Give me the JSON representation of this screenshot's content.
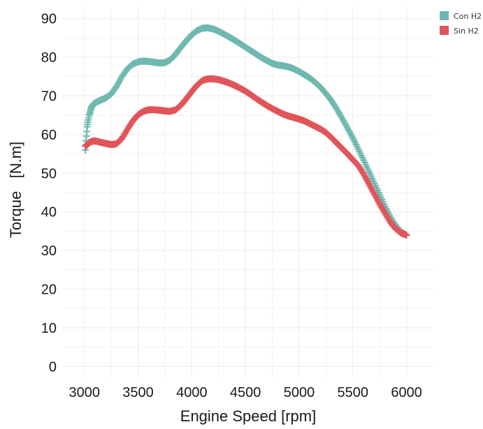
{
  "chart_data": {
    "type": "scatter",
    "title": "",
    "xlabel": "Engine Speed [rpm]",
    "ylabel": "Torque   [N.m]",
    "xlim": [
      2800,
      6250
    ],
    "ylim": [
      -3,
      93
    ],
    "x_ticks": [
      3000,
      3500,
      4000,
      4500,
      5000,
      5500,
      6000
    ],
    "y_ticks": [
      0,
      10,
      20,
      30,
      40,
      50,
      60,
      70,
      80,
      90
    ],
    "grid": true,
    "legend_position": "top-right",
    "marker": "plus",
    "series": [
      {
        "name": "Con H2",
        "color": "#6fb8b0",
        "points": [
          [
            3010,
            56
          ],
          [
            3025,
            62
          ],
          [
            3045,
            65
          ],
          [
            3065,
            67
          ],
          [
            3090,
            68
          ],
          [
            3120,
            68.5
          ],
          [
            3160,
            69
          ],
          [
            3200,
            69.5
          ],
          [
            3250,
            70.5
          ],
          [
            3300,
            72.5
          ],
          [
            3350,
            75
          ],
          [
            3400,
            77
          ],
          [
            3450,
            78.2
          ],
          [
            3500,
            78.8
          ],
          [
            3550,
            79
          ],
          [
            3600,
            78.9
          ],
          [
            3650,
            78.7
          ],
          [
            3700,
            78.5
          ],
          [
            3750,
            78.6
          ],
          [
            3800,
            79.3
          ],
          [
            3850,
            80.8
          ],
          [
            3900,
            82.6
          ],
          [
            3950,
            84.3
          ],
          [
            4000,
            85.8
          ],
          [
            4050,
            86.9
          ],
          [
            4100,
            87.5
          ],
          [
            4150,
            87.6
          ],
          [
            4200,
            87.3
          ],
          [
            4250,
            86.7
          ],
          [
            4300,
            86
          ],
          [
            4350,
            85.2
          ],
          [
            4400,
            84.4
          ],
          [
            4450,
            83.5
          ],
          [
            4500,
            82.6
          ],
          [
            4550,
            81.7
          ],
          [
            4600,
            80.8
          ],
          [
            4650,
            79.9
          ],
          [
            4700,
            79.1
          ],
          [
            4750,
            78.4
          ],
          [
            4800,
            78
          ],
          [
            4850,
            77.8
          ],
          [
            4900,
            77.5
          ],
          [
            4950,
            77
          ],
          [
            5000,
            76.3
          ],
          [
            5050,
            75.5
          ],
          [
            5100,
            74.6
          ],
          [
            5150,
            73.5
          ],
          [
            5200,
            72.2
          ],
          [
            5250,
            70.6
          ],
          [
            5300,
            68.8
          ],
          [
            5350,
            66.6
          ],
          [
            5400,
            64.2
          ],
          [
            5450,
            61.7
          ],
          [
            5500,
            59.1
          ],
          [
            5550,
            56.3
          ],
          [
            5600,
            53.4
          ],
          [
            5650,
            50.4
          ],
          [
            5700,
            47.4
          ],
          [
            5750,
            44.4
          ],
          [
            5800,
            41.4
          ],
          [
            5850,
            38.6
          ],
          [
            5900,
            36.4
          ],
          [
            5950,
            34.8
          ],
          [
            6000,
            34
          ]
        ]
      },
      {
        "name": "Sin H2",
        "color": "#e0545a",
        "points": [
          [
            3010,
            57
          ],
          [
            3030,
            57.5
          ],
          [
            3050,
            58
          ],
          [
            3080,
            58.3
          ],
          [
            3110,
            58.3
          ],
          [
            3150,
            58
          ],
          [
            3200,
            57.7
          ],
          [
            3250,
            57.4
          ],
          [
            3300,
            57.6
          ],
          [
            3350,
            59
          ],
          [
            3400,
            61.3
          ],
          [
            3450,
            63.5
          ],
          [
            3500,
            65.1
          ],
          [
            3550,
            66
          ],
          [
            3600,
            66.4
          ],
          [
            3650,
            66.4
          ],
          [
            3700,
            66.3
          ],
          [
            3750,
            66.1
          ],
          [
            3800,
            66
          ],
          [
            3850,
            66.4
          ],
          [
            3900,
            67.6
          ],
          [
            3950,
            69.3
          ],
          [
            4000,
            71.1
          ],
          [
            4050,
            72.8
          ],
          [
            4100,
            74
          ],
          [
            4150,
            74.4
          ],
          [
            4200,
            74.4
          ],
          [
            4250,
            74.2
          ],
          [
            4300,
            73.8
          ],
          [
            4350,
            73.3
          ],
          [
            4400,
            72.7
          ],
          [
            4450,
            72
          ],
          [
            4500,
            71.2
          ],
          [
            4550,
            70.3
          ],
          [
            4600,
            69.3
          ],
          [
            4650,
            68.4
          ],
          [
            4700,
            67.5
          ],
          [
            4750,
            66.7
          ],
          [
            4800,
            66
          ],
          [
            4850,
            65.3
          ],
          [
            4900,
            64.8
          ],
          [
            4950,
            64.4
          ],
          [
            5000,
            64
          ],
          [
            5050,
            63.5
          ],
          [
            5100,
            62.8
          ],
          [
            5150,
            62.1
          ],
          [
            5200,
            61.4
          ],
          [
            5250,
            60.5
          ],
          [
            5300,
            59.2
          ],
          [
            5350,
            57.8
          ],
          [
            5400,
            56.4
          ],
          [
            5450,
            55
          ],
          [
            5500,
            53.5
          ],
          [
            5550,
            52
          ],
          [
            5600,
            49.8
          ],
          [
            5650,
            47.2
          ],
          [
            5700,
            44.6
          ],
          [
            5750,
            42
          ],
          [
            5800,
            39.6
          ],
          [
            5850,
            37.3
          ],
          [
            5900,
            35.6
          ],
          [
            5950,
            34.5
          ],
          [
            6000,
            34
          ]
        ]
      }
    ]
  }
}
